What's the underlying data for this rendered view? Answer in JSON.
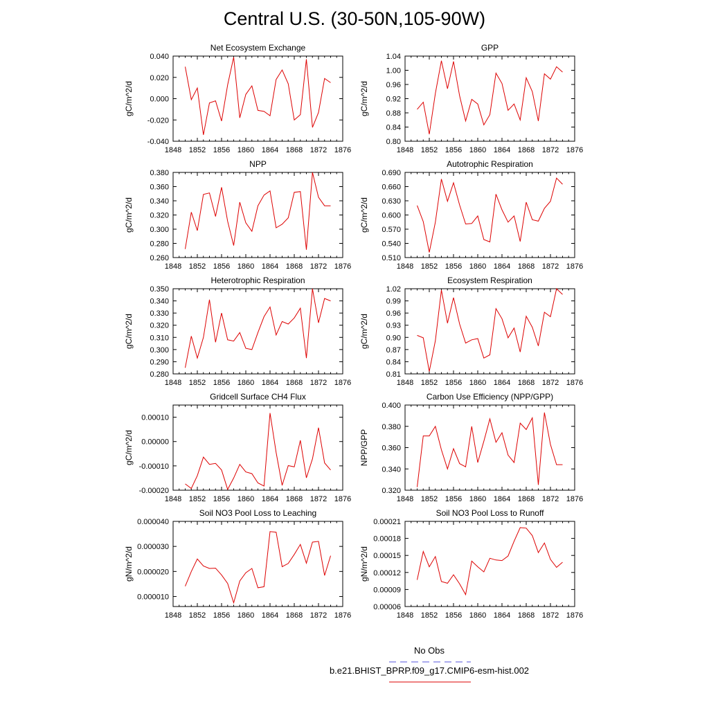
{
  "figure": {
    "title": "Central U.S. (30-50N,105-90W)",
    "legend": [
      {
        "label": "No Obs",
        "color": "#5555dd",
        "style": "dashed"
      },
      {
        "label": "b.e21.BHIST_BPRP.f09_g17.CMIP6-esm-hist.002",
        "color": "#dd0000",
        "style": "solid"
      }
    ]
  },
  "chart_data": [
    {
      "type": "line",
      "title": "Net Ecosystem Exchange",
      "ylabel": "gC/m^2/d",
      "xlabel": "",
      "xlim": [
        1848,
        1876
      ],
      "ylim": [
        -0.04,
        0.04
      ],
      "xticks": [
        1848,
        1852,
        1856,
        1860,
        1864,
        1868,
        1872,
        1876
      ],
      "yticks": [
        -0.04,
        -0.02,
        0,
        0.02,
        0.04
      ],
      "ytick_labels": [
        "-0.040",
        "-0.020",
        "0.000",
        "0.020",
        "0.040"
      ],
      "x": [
        1850,
        1851,
        1852,
        1853,
        1854,
        1855,
        1856,
        1857,
        1858,
        1859,
        1860,
        1861,
        1862,
        1863,
        1864,
        1865,
        1866,
        1867,
        1868,
        1869,
        1870,
        1871,
        1872,
        1873,
        1874
      ],
      "series": [
        {
          "values": [
            0.03,
            -0.001,
            0.01,
            -0.034,
            -0.004,
            -0.002,
            -0.021,
            0.013,
            0.039,
            -0.018,
            0.004,
            0.012,
            -0.011,
            -0.012,
            -0.016,
            0.018,
            0.027,
            0.014,
            -0.02,
            -0.015,
            0.037,
            -0.027,
            -0.013,
            0.019,
            0.015
          ],
          "color": "#dd0000"
        }
      ]
    },
    {
      "type": "line",
      "title": "GPP",
      "ylabel": "gC/m^2/d",
      "xlabel": "",
      "xlim": [
        1848,
        1876
      ],
      "ylim": [
        0.8,
        1.04
      ],
      "xticks": [
        1848,
        1852,
        1856,
        1860,
        1864,
        1868,
        1872,
        1876
      ],
      "yticks": [
        0.8,
        0.84,
        0.88,
        0.92,
        0.96,
        1.0,
        1.04
      ],
      "ytick_labels": [
        "0.80",
        "0.84",
        "0.88",
        "0.92",
        "0.96",
        "1.00",
        "1.04"
      ],
      "x": [
        1850,
        1851,
        1852,
        1853,
        1854,
        1855,
        1856,
        1857,
        1858,
        1859,
        1860,
        1861,
        1862,
        1863,
        1864,
        1865,
        1866,
        1867,
        1868,
        1869,
        1870,
        1871,
        1872,
        1873,
        1874
      ],
      "series": [
        {
          "values": [
            0.89,
            0.91,
            0.82,
            0.935,
            1.027,
            0.948,
            1.025,
            0.928,
            0.857,
            0.918,
            0.905,
            0.846,
            0.875,
            0.992,
            0.963,
            0.887,
            0.905,
            0.86,
            0.979,
            0.94,
            0.857,
            0.99,
            0.975,
            1.01,
            0.995
          ],
          "color": "#dd0000"
        }
      ]
    },
    {
      "type": "line",
      "title": "NPP",
      "ylabel": "gC/m^2/d",
      "xlabel": "",
      "xlim": [
        1848,
        1876
      ],
      "ylim": [
        0.26,
        0.38
      ],
      "xticks": [
        1848,
        1852,
        1856,
        1860,
        1864,
        1868,
        1872,
        1876
      ],
      "yticks": [
        0.26,
        0.28,
        0.3,
        0.32,
        0.34,
        0.36,
        0.38
      ],
      "ytick_labels": [
        "0.260",
        "0.280",
        "0.300",
        "0.320",
        "0.340",
        "0.360",
        "0.380"
      ],
      "x": [
        1850,
        1851,
        1852,
        1853,
        1854,
        1855,
        1856,
        1857,
        1858,
        1859,
        1860,
        1861,
        1862,
        1863,
        1864,
        1865,
        1866,
        1867,
        1868,
        1869,
        1870,
        1871,
        1872,
        1873,
        1874
      ],
      "series": [
        {
          "values": [
            0.272,
            0.324,
            0.298,
            0.349,
            0.351,
            0.318,
            0.359,
            0.311,
            0.277,
            0.338,
            0.309,
            0.297,
            0.333,
            0.348,
            0.354,
            0.302,
            0.307,
            0.316,
            0.352,
            0.353,
            0.271,
            0.38,
            0.345,
            0.333,
            0.333
          ],
          "color": "#dd0000"
        }
      ]
    },
    {
      "type": "line",
      "title": "Autotrophic Respiration",
      "ylabel": "gC/m^2/d",
      "xlabel": "",
      "xlim": [
        1848,
        1876
      ],
      "ylim": [
        0.51,
        0.69
      ],
      "xticks": [
        1848,
        1852,
        1856,
        1860,
        1864,
        1868,
        1872,
        1876
      ],
      "yticks": [
        0.51,
        0.54,
        0.57,
        0.6,
        0.63,
        0.66,
        0.69
      ],
      "ytick_labels": [
        "0.510",
        "0.540",
        "0.570",
        "0.600",
        "0.630",
        "0.660",
        "0.690"
      ],
      "x": [
        1850,
        1851,
        1852,
        1853,
        1854,
        1855,
        1856,
        1857,
        1858,
        1859,
        1860,
        1861,
        1862,
        1863,
        1864,
        1865,
        1866,
        1867,
        1868,
        1869,
        1870,
        1871,
        1872,
        1873,
        1874
      ],
      "series": [
        {
          "values": [
            0.62,
            0.586,
            0.521,
            0.585,
            0.676,
            0.629,
            0.668,
            0.621,
            0.581,
            0.582,
            0.598,
            0.548,
            0.543,
            0.644,
            0.611,
            0.585,
            0.598,
            0.544,
            0.627,
            0.59,
            0.587,
            0.614,
            0.629,
            0.678,
            0.665
          ],
          "color": "#dd0000"
        }
      ]
    },
    {
      "type": "line",
      "title": "Heterotrophic Respiration",
      "ylabel": "gC/m^2/d",
      "xlabel": "",
      "xlim": [
        1848,
        1876
      ],
      "ylim": [
        0.28,
        0.35
      ],
      "xticks": [
        1848,
        1852,
        1856,
        1860,
        1864,
        1868,
        1872,
        1876
      ],
      "yticks": [
        0.28,
        0.29,
        0.3,
        0.31,
        0.32,
        0.33,
        0.34,
        0.35
      ],
      "ytick_labels": [
        "0.280",
        "0.290",
        "0.300",
        "0.310",
        "0.320",
        "0.330",
        "0.340",
        "0.350"
      ],
      "x": [
        1850,
        1851,
        1852,
        1853,
        1854,
        1855,
        1856,
        1857,
        1858,
        1859,
        1860,
        1861,
        1862,
        1863,
        1864,
        1865,
        1866,
        1867,
        1868,
        1869,
        1870,
        1871,
        1872,
        1873,
        1874
      ],
      "series": [
        {
          "values": [
            0.285,
            0.311,
            0.293,
            0.31,
            0.341,
            0.306,
            0.33,
            0.308,
            0.307,
            0.314,
            0.301,
            0.3,
            0.314,
            0.327,
            0.335,
            0.312,
            0.323,
            0.321,
            0.326,
            0.334,
            0.293,
            0.35,
            0.322,
            0.342,
            0.34
          ],
          "color": "#dd0000"
        }
      ]
    },
    {
      "type": "line",
      "title": "Ecosystem Respiration",
      "ylabel": "gC/m^2/d",
      "xlabel": "",
      "xlim": [
        1848,
        1876
      ],
      "ylim": [
        0.81,
        1.02
      ],
      "xticks": [
        1848,
        1852,
        1856,
        1860,
        1864,
        1868,
        1872,
        1876
      ],
      "yticks": [
        0.81,
        0.84,
        0.87,
        0.9,
        0.93,
        0.96,
        0.99,
        1.02
      ],
      "ytick_labels": [
        "0.81",
        "0.84",
        "0.87",
        "0.90",
        "0.93",
        "0.96",
        "0.99",
        "1.02"
      ],
      "x": [
        1850,
        1851,
        1852,
        1853,
        1854,
        1855,
        1856,
        1857,
        1858,
        1859,
        1860,
        1861,
        1862,
        1863,
        1864,
        1865,
        1866,
        1867,
        1868,
        1869,
        1870,
        1871,
        1872,
        1873,
        1874
      ],
      "series": [
        {
          "values": [
            0.905,
            0.899,
            0.816,
            0.892,
            1.017,
            0.935,
            0.998,
            0.933,
            0.886,
            0.894,
            0.897,
            0.849,
            0.857,
            0.971,
            0.946,
            0.899,
            0.923,
            0.864,
            0.952,
            0.925,
            0.879,
            0.962,
            0.951,
            1.02,
            1.006
          ],
          "color": "#dd0000"
        }
      ]
    },
    {
      "type": "line",
      "title": "Gridcell Surface CH4 Flux",
      "ylabel": "gC/m^2/d",
      "xlabel": "",
      "xlim": [
        1848,
        1876
      ],
      "ylim": [
        -0.0002,
        0.00015
      ],
      "xticks": [
        1848,
        1852,
        1856,
        1860,
        1864,
        1868,
        1872,
        1876
      ],
      "yticks": [
        -0.0002,
        -0.0001,
        0,
        0.0001
      ],
      "ytick_labels": [
        "-0.00020",
        "-0.00010",
        "0.00000",
        "0.00010"
      ],
      "x": [
        1850,
        1851,
        1852,
        1853,
        1854,
        1855,
        1856,
        1857,
        1858,
        1859,
        1860,
        1861,
        1862,
        1863,
        1864,
        1865,
        1866,
        1867,
        1868,
        1869,
        1870,
        1871,
        1872,
        1873,
        1874
      ],
      "series": [
        {
          "values": [
            -0.000174,
            -0.000193,
            -0.00014,
            -6.4e-05,
            -9.4e-05,
            -9e-05,
            -0.000117,
            -0.000197,
            -0.00015,
            -9.4e-05,
            -0.000125,
            -0.000132,
            -0.00017,
            -0.000183,
            0.000117,
            -4.5e-05,
            -0.00018,
            -9.9e-05,
            -0.000104,
            5e-06,
            -0.000149,
            -7.1e-05,
            5.7e-05,
            -8.8e-05,
            -0.000117
          ],
          "color": "#dd0000"
        }
      ]
    },
    {
      "type": "line",
      "title": "Carbon Use Efficiency (NPP/GPP)",
      "ylabel": "NPP/GPP",
      "xlabel": "",
      "xlim": [
        1848,
        1876
      ],
      "ylim": [
        0.32,
        0.4
      ],
      "xticks": [
        1848,
        1852,
        1856,
        1860,
        1864,
        1868,
        1872,
        1876
      ],
      "yticks": [
        0.32,
        0.34,
        0.36,
        0.38,
        0.4
      ],
      "ytick_labels": [
        "0.320",
        "0.340",
        "0.360",
        "0.380",
        "0.400"
      ],
      "x": [
        1850,
        1851,
        1852,
        1853,
        1854,
        1855,
        1856,
        1857,
        1858,
        1859,
        1860,
        1861,
        1862,
        1863,
        1864,
        1865,
        1866,
        1867,
        1868,
        1869,
        1870,
        1871,
        1872,
        1873,
        1874
      ],
      "series": [
        {
          "values": [
            0.323,
            0.371,
            0.371,
            0.38,
            0.358,
            0.34,
            0.359,
            0.345,
            0.342,
            0.38,
            0.346,
            0.366,
            0.387,
            0.365,
            0.374,
            0.353,
            0.346,
            0.383,
            0.377,
            0.388,
            0.325,
            0.393,
            0.363,
            0.344,
            0.344
          ],
          "color": "#dd0000"
        }
      ]
    },
    {
      "type": "line",
      "title": "Soil NO3 Pool Loss to Leaching",
      "ylabel": "gN/m^2/d",
      "xlabel": "",
      "xlim": [
        1848,
        1876
      ],
      "ylim": [
        6e-06,
        4e-05
      ],
      "xticks": [
        1848,
        1852,
        1856,
        1860,
        1864,
        1868,
        1872,
        1876
      ],
      "yticks": [
        1e-05,
        2e-05,
        3e-05,
        4e-05
      ],
      "ytick_labels": [
        "0.000010",
        "0.000020",
        "0.000030",
        "0.000040"
      ],
      "x": [
        1850,
        1851,
        1852,
        1853,
        1854,
        1855,
        1856,
        1857,
        1858,
        1859,
        1860,
        1861,
        1862,
        1863,
        1864,
        1865,
        1866,
        1867,
        1868,
        1869,
        1870,
        1871,
        1872,
        1873,
        1874
      ],
      "series": [
        {
          "values": [
            1.41e-05,
            2e-05,
            2.5e-05,
            2.22e-05,
            2.12e-05,
            2.13e-05,
            1.86e-05,
            1.52e-05,
            7.5e-06,
            1.62e-05,
            1.95e-05,
            2.12e-05,
            1.35e-05,
            1.39e-05,
            3.59e-05,
            3.57e-05,
            2.19e-05,
            2.32e-05,
            2.68e-05,
            3.08e-05,
            2.33e-05,
            3.17e-05,
            3.2e-05,
            1.84e-05,
            2.63e-05
          ],
          "color": "#dd0000"
        }
      ]
    },
    {
      "type": "line",
      "title": "Soil NO3 Pool Loss to Runoff",
      "ylabel": "gN/m^2/d",
      "xlabel": "",
      "xlim": [
        1848,
        1876
      ],
      "ylim": [
        6e-05,
        0.00021
      ],
      "xticks": [
        1848,
        1852,
        1856,
        1860,
        1864,
        1868,
        1872,
        1876
      ],
      "yticks": [
        6e-05,
        9e-05,
        0.00012,
        0.00015,
        0.00018,
        0.00021
      ],
      "ytick_labels": [
        "0.00006",
        "0.00009",
        "0.00012",
        "0.00015",
        "0.00018",
        "0.00021"
      ],
      "x": [
        1850,
        1851,
        1852,
        1853,
        1854,
        1855,
        1856,
        1857,
        1858,
        1859,
        1860,
        1861,
        1862,
        1863,
        1864,
        1865,
        1866,
        1867,
        1868,
        1869,
        1870,
        1871,
        1872,
        1873,
        1874
      ],
      "series": [
        {
          "values": [
            0.000107,
            0.000157,
            0.00013,
            0.000148,
            0.000104,
            0.000101,
            0.000116,
            0.0001,
            8.1e-05,
            0.00014,
            0.00013,
            0.000121,
            0.000145,
            0.000142,
            0.000141,
            0.000149,
            0.000175,
            0.000199,
            0.000198,
            0.000185,
            0.000155,
            0.000172,
            0.000143,
            0.000129,
            0.000138
          ],
          "color": "#dd0000"
        }
      ]
    }
  ]
}
